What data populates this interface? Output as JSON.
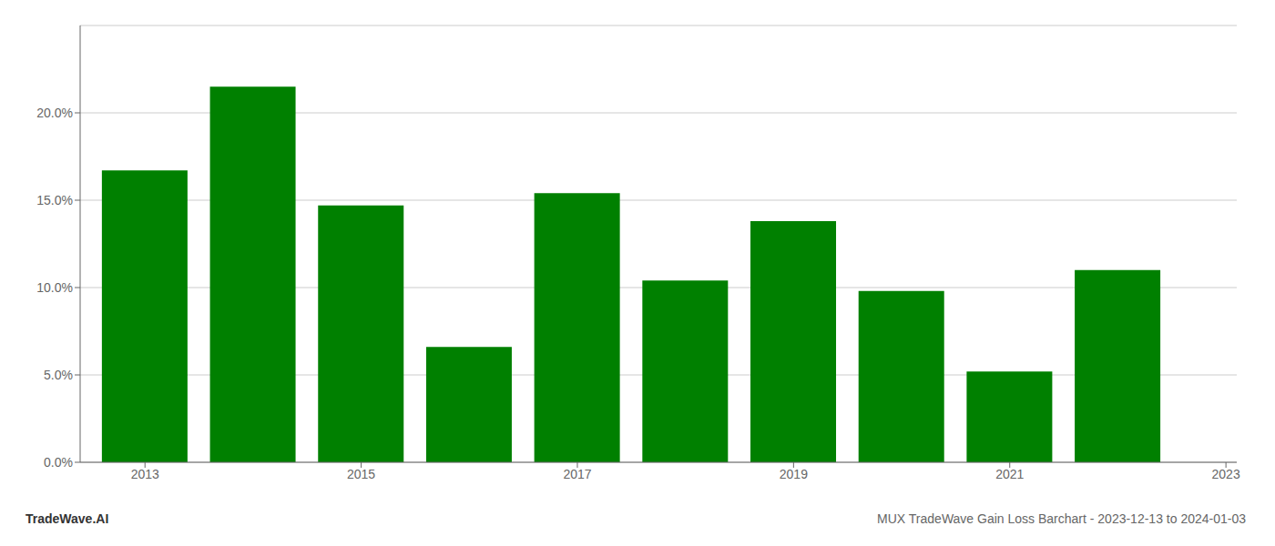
{
  "chart_data": {
    "type": "bar",
    "title": "MUX TradeWave Gain Loss Barchart - 2023-12-13 to 2024-01-03",
    "annotations": [
      "TradeWave.AI"
    ],
    "x": [
      2013,
      2014,
      2015,
      2016,
      2017,
      2018,
      2019,
      2020,
      2021,
      2022
    ],
    "values": [
      0.167,
      0.215,
      0.147,
      0.066,
      0.154,
      0.104,
      0.138,
      0.098,
      0.052,
      0.11
    ],
    "color": "#008000",
    "xlim": [
      2012.4,
      2023.1
    ],
    "xticks": [
      2013,
      2015,
      2017,
      2019,
      2021,
      2023
    ],
    "ylim": [
      0,
      0.25
    ],
    "yticks": [
      {
        "value": 0.0,
        "label": "0.0%"
      },
      {
        "value": 0.05,
        "label": "5.0%"
      },
      {
        "value": 0.1,
        "label": "10.0%"
      },
      {
        "value": 0.15,
        "label": "15.0%"
      },
      {
        "value": 0.2,
        "label": "20.0%"
      }
    ],
    "grid": true
  }
}
